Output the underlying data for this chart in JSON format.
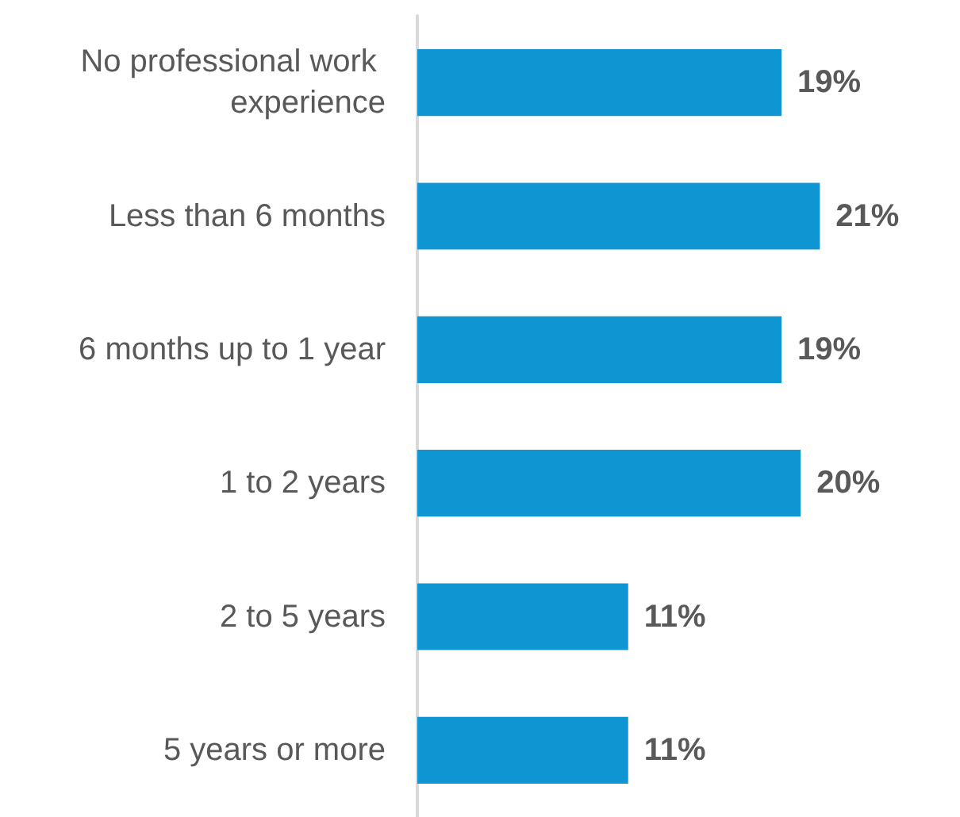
{
  "chart_data": {
    "type": "bar",
    "orientation": "horizontal",
    "categories": [
      "No professional work experience",
      "Less than 6 months",
      "6 months up to 1 year",
      "1 to 2 years",
      "2 to 5 years",
      "5 years or more"
    ],
    "values": [
      19,
      21,
      19,
      20,
      11,
      11
    ],
    "value_labels": [
      "19%",
      "21%",
      "19%",
      "20%",
      "11%",
      "11%"
    ],
    "color": "#0f96d2"
  }
}
